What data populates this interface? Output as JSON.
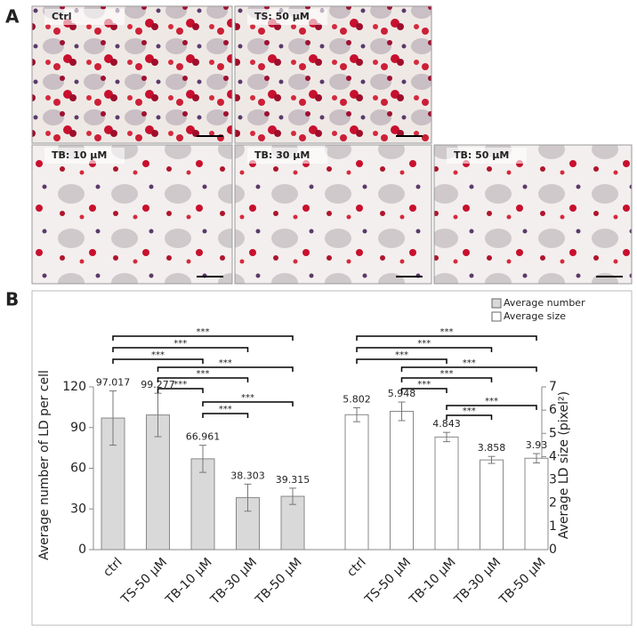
{
  "panel_a": {
    "label": "A",
    "images": [
      "Ctrl",
      "TS: 50 μM",
      "TB: 10 μM",
      "TB: 30 μM",
      "TB: 50 μM"
    ]
  },
  "panel_b": {
    "label": "B"
  },
  "chart_data": {
    "type": "bar",
    "categories": [
      "ctrl",
      "TS-50 μM",
      "TB-10 μM",
      "TB-30 μM",
      "TB-50 μM"
    ],
    "ylabel": "Average number of LD per cell",
    "y2label": "Average LD size (pixel²)",
    "ylim": [
      0,
      120
    ],
    "yticks": [
      0,
      30,
      60,
      90,
      120
    ],
    "y2lim": [
      0,
      7
    ],
    "y2ticks": [
      0,
      1,
      2,
      3,
      4,
      5,
      6,
      7
    ],
    "legend": "top-right",
    "series": [
      {
        "name": "Average number",
        "color": "#d9d9d9",
        "values": [
          97.017,
          99.277,
          66.961,
          38.303,
          39.315
        ],
        "errors": [
          20,
          16,
          10,
          10,
          6
        ]
      },
      {
        "name": "Average size",
        "color": "#ffffff",
        "axis": "y2",
        "values": [
          5.802,
          5.948,
          4.843,
          3.858,
          3.93
        ],
        "errors": [
          0.3,
          0.4,
          0.2,
          0.15,
          0.2
        ]
      }
    ],
    "significance": [
      {
        "pair": [
          0,
          4
        ],
        "label": "***"
      },
      {
        "pair": [
          0,
          3
        ],
        "label": "***"
      },
      {
        "pair": [
          0,
          2
        ],
        "label": "***"
      },
      {
        "pair": [
          1,
          4
        ],
        "label": "***"
      },
      {
        "pair": [
          1,
          3
        ],
        "label": "***"
      },
      {
        "pair": [
          1,
          2
        ],
        "label": "***"
      },
      {
        "pair": [
          2,
          4
        ],
        "label": "***"
      },
      {
        "pair": [
          2,
          3
        ],
        "label": "***"
      }
    ]
  }
}
